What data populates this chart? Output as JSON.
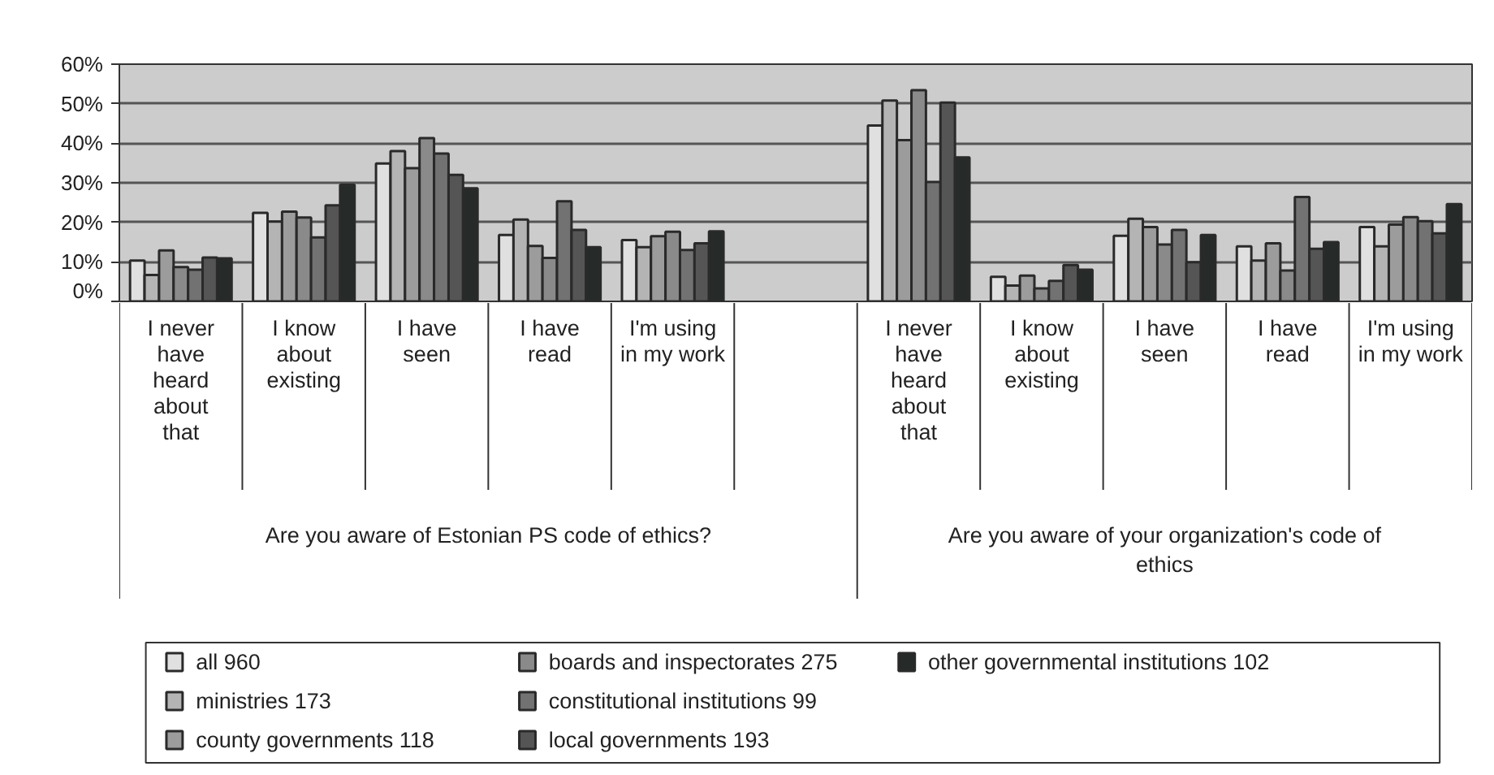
{
  "chart_data": {
    "type": "bar",
    "categories": [
      "I never\nhave\nheard\nabout\nthat",
      "I know\nabout\nexisting",
      "I have\nseen",
      "I have\nread",
      "I'm using\nin my work",
      null,
      "I never\nhave\nheard\nabout\nthat",
      "I know\nabout\nexisting",
      "I have\nseen",
      "I have\nread",
      "I'm using\nin my work"
    ],
    "series": [
      {
        "name": "all 960",
        "color": "#e0e0e0",
        "values": [
          10.3,
          22.4,
          34.9,
          16.8,
          15.5,
          null,
          44.5,
          6.2,
          16.6,
          13.9,
          18.8
        ]
      },
      {
        "name": "ministries 173",
        "color": "#b4b4b4",
        "values": [
          6.7,
          20.2,
          38.0,
          20.7,
          13.7,
          null,
          50.8,
          4.0,
          20.9,
          10.3,
          13.9
        ]
      },
      {
        "name": "county governments 118",
        "color": "#9c9c9c",
        "values": [
          12.9,
          22.7,
          33.7,
          14.0,
          16.5,
          null,
          40.8,
          6.5,
          18.8,
          14.7,
          19.4
        ]
      },
      {
        "name": "boards and inspectorates 275",
        "color": "#8a8a8a",
        "values": [
          8.7,
          21.2,
          41.3,
          11.0,
          17.6,
          null,
          53.4,
          3.3,
          14.4,
          7.8,
          21.3
        ]
      },
      {
        "name": "constitutional institutions 99",
        "color": "#727272",
        "values": [
          8.0,
          16.2,
          37.4,
          25.3,
          13.0,
          null,
          30.2,
          5.2,
          18.1,
          26.4,
          20.3
        ]
      },
      {
        "name": "local governments 193",
        "color": "#555555",
        "values": [
          11.1,
          24.3,
          32.0,
          18.1,
          14.7,
          null,
          50.3,
          9.2,
          9.9,
          13.3,
          17.2
        ]
      },
      {
        "name": "other governmental institutions 102",
        "color": "#262a28",
        "values": [
          10.9,
          29.5,
          28.6,
          13.7,
          17.7,
          null,
          36.4,
          8.0,
          16.8,
          15.0,
          24.6
        ]
      }
    ],
    "ylim": [
      0,
      60
    ],
    "yticks": [
      {
        "value": 0,
        "label": "0%"
      },
      {
        "value": 10,
        "label": "10%"
      },
      {
        "value": 20,
        "label": "20%"
      },
      {
        "value": 30,
        "label": "30%"
      },
      {
        "value": 40,
        "label": "40%"
      },
      {
        "value": 50,
        "label": "50%"
      },
      {
        "value": 60,
        "label": "60%"
      }
    ],
    "grid": "y",
    "legend": "bottom",
    "annotations": [
      "Are you aware of Estonian PS code of ethics?",
      "Are you aware of your organization's code of\nethics"
    ]
  }
}
